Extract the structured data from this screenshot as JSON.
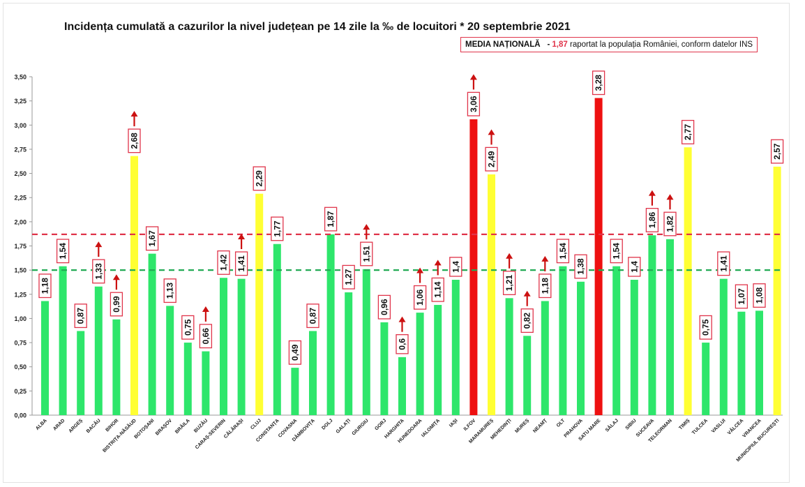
{
  "title": "Incidența cumulată a cazurilor la nivel județean pe 14 zile la ‰ de locuitori * 20 septembrie 2021",
  "media_box": {
    "label": "MEDIA NAȚIONALĂ",
    "separator": "-",
    "value": "1,87",
    "text": "raportat la populația României, conform datelor INS"
  },
  "colors": {
    "green": "#2ee66b",
    "yellow": "#ffff33",
    "red": "#ee1111",
    "label_border": "#e0344a",
    "arrow": "#cc1111",
    "ref_red": "#e0344a",
    "ref_green": "#22aa55"
  },
  "chart_data": {
    "type": "bar",
    "title": "Incidența cumulată a cazurilor la nivel județean pe 14 zile la ‰ de locuitori * 20 septembrie 2021",
    "ylim": [
      0,
      3.5
    ],
    "yticks": [
      "0,00",
      "0,25",
      "0,50",
      "0,75",
      "1,00",
      "1,25",
      "1,50",
      "1,75",
      "2,00",
      "2,25",
      "2,50",
      "2,75",
      "3,00",
      "3,25",
      "3,50"
    ],
    "grid": false,
    "reference_lines": [
      {
        "value": 1.87,
        "color": "red",
        "style": "dashed"
      },
      {
        "value": 1.5,
        "color": "green",
        "style": "dashed"
      }
    ],
    "categories": [
      "ALBA",
      "ARAD",
      "ARGEȘ",
      "BACĂU",
      "BIHOR",
      "BISTRIȚA-NĂSĂUD",
      "BOTOȘANI",
      "BRAȘOV",
      "BRĂILA",
      "BUZĂU",
      "CARAȘ-SEVERIN",
      "CĂLĂRAȘI",
      "CLUJ",
      "CONSTANȚA",
      "COVASNA",
      "DÂMBOVIȚA",
      "DOLJ",
      "GALAȚI",
      "GIURGIU",
      "GORJ",
      "HARGHITA",
      "HUNEDOARA",
      "IALOMIȚA",
      "IAȘI",
      "ILFOV",
      "MARAMUREȘ",
      "MEHEDINȚI",
      "MUREȘ",
      "NEAMȚ",
      "OLT",
      "PRAHOVA",
      "SATU MARE",
      "SĂLAJ",
      "SIBIU",
      "SUCEAVA",
      "TELEORMAN",
      "TIMIȘ",
      "TULCEA",
      "VASLUI",
      "VÂLCEA",
      "VRANCEA",
      "MUNICIPIUL BUCUREȘTI"
    ],
    "values": [
      1.18,
      1.54,
      0.87,
      1.33,
      0.99,
      2.68,
      1.67,
      1.13,
      0.75,
      0.66,
      1.42,
      1.41,
      2.29,
      1.77,
      0.49,
      0.87,
      1.87,
      1.27,
      1.51,
      0.96,
      0.6,
      1.06,
      1.14,
      1.4,
      3.06,
      2.49,
      1.21,
      0.82,
      1.18,
      1.54,
      1.38,
      3.28,
      1.54,
      1.4,
      1.86,
      1.82,
      2.77,
      0.75,
      1.41,
      1.07,
      1.08,
      2.57
    ],
    "value_labels": [
      "1,18",
      "1,54",
      "0,87",
      "1,33",
      "0,99",
      "2,68",
      "1,67",
      "1,13",
      "0,75",
      "0,66",
      "1,42",
      "1,41",
      "2,29",
      "1,77",
      "0,49",
      "0,87",
      "1,87",
      "1,27",
      "1,51",
      "0,96",
      "0,6",
      "1,06",
      "1,14",
      "1,4",
      "3,06",
      "2,49",
      "1,21",
      "0,82",
      "1,18",
      "1,54",
      "1,38",
      "3,28",
      "1,54",
      "1,4",
      "1,86",
      "1,82",
      "2,77",
      "0,75",
      "1,41",
      "1,07",
      "1,08",
      "2,57"
    ],
    "bar_colors": [
      "green",
      "green",
      "green",
      "green",
      "green",
      "yellow",
      "green",
      "green",
      "green",
      "green",
      "green",
      "green",
      "yellow",
      "green",
      "green",
      "green",
      "green",
      "green",
      "green",
      "green",
      "green",
      "green",
      "green",
      "green",
      "red",
      "yellow",
      "green",
      "green",
      "green",
      "green",
      "green",
      "red",
      "green",
      "green",
      "green",
      "green",
      "yellow",
      "green",
      "green",
      "green",
      "green",
      "yellow"
    ],
    "rising": [
      false,
      false,
      false,
      true,
      true,
      true,
      false,
      false,
      false,
      true,
      false,
      true,
      false,
      false,
      false,
      false,
      false,
      false,
      true,
      false,
      true,
      true,
      true,
      false,
      true,
      true,
      true,
      true,
      true,
      false,
      false,
      false,
      false,
      false,
      true,
      true,
      false,
      false,
      false,
      false,
      false,
      false
    ]
  }
}
